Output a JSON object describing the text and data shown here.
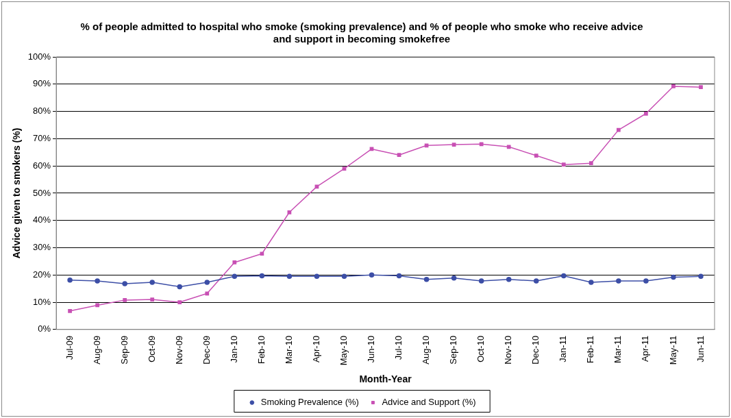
{
  "chart_data": {
    "type": "line",
    "title": "% of people admitted to hospital who smoke (smoking prevalence) and % of people who smoke who receive advice and support in becoming smokefree",
    "xlabel": "Month-Year",
    "ylabel": "Advice given to smokers (%)",
    "categories": [
      "Jul-09",
      "Aug-09",
      "Sep-09",
      "Oct-09",
      "Nov-09",
      "Dec-09",
      "Jan-10",
      "Feb-10",
      "Mar-10",
      "Apr-10",
      "May-10",
      "Jun-10",
      "Jul-10",
      "Aug-10",
      "Sep-10",
      "Oct-10",
      "Nov-10",
      "Dec-10",
      "Jan-11",
      "Feb-11",
      "Mar-11",
      "Apr-11",
      "May-11",
      "Jun-11"
    ],
    "series": [
      {
        "name": "Smoking Prevalence (%)",
        "color": "#3c4ea6",
        "marker": "circle",
        "values": [
          18.1,
          17.8,
          16.8,
          17.3,
          15.7,
          17.3,
          19.5,
          19.7,
          19.5,
          19.5,
          19.5,
          20,
          19.7,
          18.4,
          18.9,
          17.8,
          18.4,
          17.8,
          19.7,
          17.3,
          17.8,
          17.8,
          19.2,
          19.5
        ]
      },
      {
        "name": "Advice and Support (%)",
        "color": "#c850b4",
        "marker": "square",
        "values": [
          6.8,
          8.9,
          10.8,
          11,
          10,
          13.2,
          24.6,
          27.8,
          43,
          52.4,
          59,
          66.2,
          64,
          67.5,
          67.8,
          68,
          67,
          63.8,
          60.5,
          61,
          73.2,
          79.2,
          89.2,
          88.9
        ]
      }
    ],
    "ylim": [
      0,
      100
    ],
    "yticks": [
      {
        "value": 0,
        "label": "0%"
      },
      {
        "value": 10,
        "label": "10%"
      },
      {
        "value": 20,
        "label": "20%"
      },
      {
        "value": 30,
        "label": "30%"
      },
      {
        "value": 40,
        "label": "40%"
      },
      {
        "value": 50,
        "label": "50%"
      },
      {
        "value": 60,
        "label": "60%"
      },
      {
        "value": 70,
        "label": "70%"
      },
      {
        "value": 80,
        "label": "80%"
      },
      {
        "value": 90,
        "label": "90%"
      },
      {
        "value": 100,
        "label": "100%"
      }
    ],
    "grid": "y",
    "legend": "bottom",
    "line_style": "solid"
  }
}
